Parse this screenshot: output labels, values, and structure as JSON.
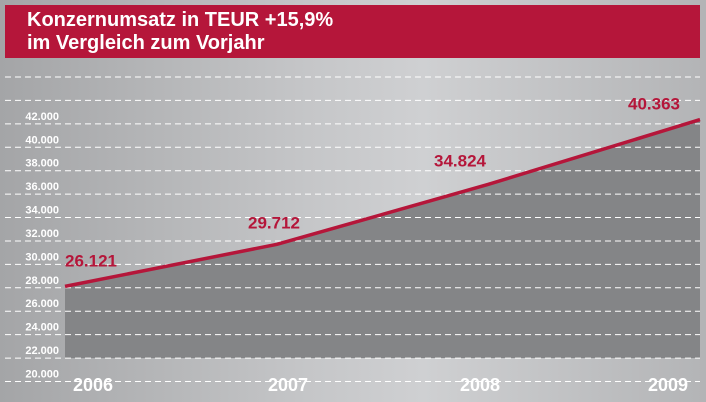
{
  "chart_data": {
    "type": "area",
    "title": "Konzernumsatz in TEUR +15,9%",
    "subtitle": "im Vergleich zum Vorjahr",
    "categories": [
      "2006",
      "2007",
      "2008",
      "2009"
    ],
    "values": [
      26121,
      29712,
      34824,
      40363
    ],
    "data_labels": [
      "26.121",
      "29.712",
      "34.824",
      "40.363"
    ],
    "yticks": [
      "20.000",
      "22.000",
      "24.000",
      "26.000",
      "28.000",
      "30.000",
      "32.000",
      "34.000",
      "36.000",
      "38.000",
      "40.000",
      "42.000"
    ],
    "ytick_values": [
      20000,
      22000,
      24000,
      26000,
      28000,
      30000,
      32000,
      34000,
      36000,
      38000,
      40000,
      42000
    ],
    "ylim": [
      18000,
      44000
    ],
    "grid": true,
    "xlabel": "",
    "ylabel": "",
    "colors": {
      "line": "#b5163a",
      "area": "#848587",
      "header": "#b5163a"
    }
  }
}
